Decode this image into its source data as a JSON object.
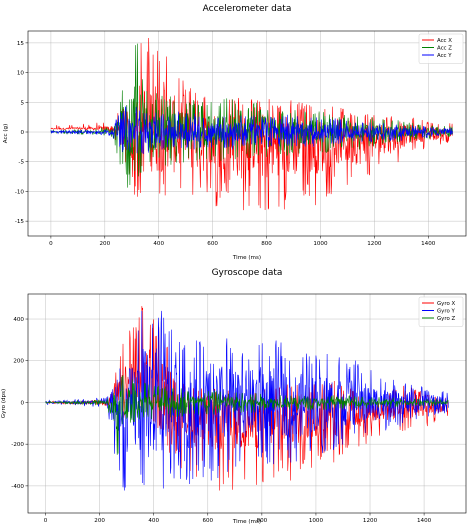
{
  "chart_data": [
    {
      "type": "line",
      "title": "Accelerometer data",
      "xlabel": "Time (ms)",
      "ylabel": "Acc (g)",
      "xlim": [
        -85,
        1540
      ],
      "ylim": [
        -17.5,
        17
      ],
      "xticks": [
        0,
        200,
        400,
        600,
        800,
        1000,
        1200,
        1400
      ],
      "yticks": [
        15,
        10,
        5,
        0,
        -5,
        -10,
        -15
      ],
      "grid": true,
      "legend_position": "top-right",
      "series": [
        {
          "name": "Acc X",
          "color": "#ff0000",
          "x": [
            0,
            50,
            100,
            150,
            200,
            230,
            260,
            290,
            320,
            340,
            360,
            380,
            400,
            430,
            460,
            500,
            540,
            580,
            620,
            660,
            700,
            750,
            800,
            850,
            900,
            950,
            1000,
            1050,
            1100,
            1150,
            1200,
            1250,
            1300,
            1350,
            1400,
            1450,
            1490
          ],
          "y_max": [
            1.2,
            1.2,
            1.5,
            1.5,
            1.7,
            2.0,
            4.5,
            4.0,
            16,
            16,
            16,
            16,
            16,
            16,
            11,
            8,
            7,
            6,
            6,
            7,
            6,
            5.5,
            6,
            5,
            5.5,
            5,
            4,
            4.5,
            4,
            3.5,
            3,
            3,
            2,
            2.5,
            1.8,
            1.5,
            1.5
          ],
          "y_min": [
            0.8,
            0.8,
            0.7,
            0.6,
            0.4,
            0.0,
            -4,
            -7,
            -14,
            -13,
            -13,
            -12,
            -13,
            -11,
            -13,
            -11,
            -13,
            -12,
            -13,
            -11,
            -15,
            -12,
            -15,
            -13,
            -14,
            -12,
            -13,
            -10,
            -10,
            -10,
            -8,
            -7,
            -5,
            -3,
            -3,
            -2,
            -2
          ]
        },
        {
          "name": "Acc Z",
          "color": "#008000",
          "x": [
            0,
            50,
            100,
            150,
            200,
            230,
            260,
            290,
            320,
            340,
            360,
            380,
            400,
            430,
            460,
            500,
            540,
            580,
            620,
            660,
            700,
            750,
            800,
            850,
            900,
            950,
            1000,
            1050,
            1100,
            1150,
            1200,
            1250,
            1300,
            1350,
            1400,
            1450,
            1490
          ],
          "y_max": [
            0.3,
            0.3,
            0.5,
            0.6,
            0.8,
            1.0,
            7,
            10,
            16,
            11,
            8,
            6,
            7,
            6,
            6,
            6,
            5.5,
            6,
            5,
            6,
            5,
            5,
            5,
            4.5,
            4,
            4,
            3.5,
            3.5,
            3,
            3,
            2.5,
            2,
            2,
            1.5,
            1.2,
            1.0,
            1.0
          ],
          "y_min": [
            -0.3,
            -0.3,
            -0.4,
            -0.5,
            -0.6,
            -1.0,
            -7,
            -10,
            -8,
            -7,
            -6,
            -6,
            -6,
            -6,
            -6,
            -5.5,
            -5,
            -5,
            -5,
            -5,
            -5,
            -4.5,
            -5,
            -4.5,
            -4,
            -4,
            -3.5,
            -3.5,
            -3,
            -3,
            -2.5,
            -2,
            -2,
            -1.5,
            -1.2,
            -1.0,
            -1.0
          ]
        },
        {
          "name": "Acc Y",
          "color": "#0000ff",
          "x": [
            0,
            50,
            100,
            150,
            200,
            230,
            260,
            290,
            320,
            340,
            360,
            380,
            400,
            430,
            460,
            500,
            540,
            580,
            620,
            660,
            700,
            750,
            800,
            850,
            900,
            950,
            1000,
            1050,
            1100,
            1150,
            1200,
            1250,
            1300,
            1350,
            1400,
            1450,
            1490
          ],
          "y_max": [
            0.3,
            0.3,
            0.3,
            0.4,
            0.5,
            0.8,
            4.5,
            4.5,
            4.5,
            4,
            4,
            3.5,
            4,
            3.5,
            3.5,
            3.5,
            3,
            3,
            3,
            3,
            3,
            3,
            3,
            3,
            3,
            2.5,
            2.5,
            2.5,
            2,
            2,
            2,
            1.5,
            1.5,
            1.2,
            1.0,
            0.8,
            0.7
          ],
          "y_min": [
            -0.3,
            -0.3,
            -0.3,
            -0.4,
            -0.5,
            -0.8,
            -4,
            -4,
            -4,
            -4,
            -3.5,
            -3.5,
            -3.5,
            -3.5,
            -3,
            -3,
            -3,
            -3,
            -3,
            -3,
            -3,
            -2.5,
            -3,
            -2.5,
            -2.5,
            -2.5,
            -2.5,
            -2,
            -2,
            -2,
            -1.5,
            -1.5,
            -1.5,
            -1.2,
            -1.0,
            -0.8,
            -0.7
          ]
        }
      ]
    },
    {
      "type": "line",
      "title": "Gyroscope data",
      "xlabel": "Time (ms)",
      "ylabel": "Gyro (dps)",
      "xlim": [
        -65,
        1555
      ],
      "ylim": [
        -530,
        520
      ],
      "xticks": [
        0,
        200,
        400,
        600,
        800,
        1000,
        1200,
        1400
      ],
      "yticks": [
        400,
        200,
        0,
        -200,
        -400
      ],
      "grid": true,
      "legend_position": "top-right",
      "series": [
        {
          "name": "Gyro X",
          "color": "#ff0000",
          "x": [
            0,
            50,
            100,
            150,
            200,
            230,
            260,
            290,
            320,
            340,
            360,
            380,
            400,
            430,
            460,
            500,
            540,
            580,
            620,
            660,
            700,
            750,
            800,
            850,
            900,
            950,
            1000,
            1050,
            1100,
            1150,
            1200,
            1250,
            1300,
            1350,
            1400,
            1450,
            1490
          ],
          "y_max": [
            5,
            5,
            8,
            10,
            15,
            20,
            150,
            300,
            400,
            400,
            480,
            470,
            450,
            420,
            300,
            100,
            80,
            80,
            70,
            70,
            60,
            50,
            60,
            70,
            100,
            100,
            90,
            100,
            110,
            60,
            50,
            40,
            80,
            80,
            50,
            30,
            30
          ],
          "y_min": [
            -5,
            -5,
            -8,
            -10,
            -15,
            -20,
            -60,
            -100,
            -80,
            -60,
            -60,
            -80,
            -100,
            -150,
            -250,
            -320,
            -350,
            -380,
            -420,
            -430,
            -430,
            -420,
            -400,
            -380,
            -380,
            -360,
            -330,
            -310,
            -260,
            -240,
            -200,
            -170,
            -150,
            -140,
            -120,
            -100,
            -80
          ]
        },
        {
          "name": "Gyro Y",
          "color": "#0000ff",
          "x": [
            0,
            50,
            100,
            150,
            200,
            230,
            260,
            290,
            320,
            340,
            360,
            380,
            400,
            430,
            460,
            500,
            540,
            580,
            620,
            660,
            700,
            750,
            800,
            850,
            900,
            950,
            1000,
            1050,
            1100,
            1150,
            1200,
            1250,
            1300,
            1350,
            1400,
            1450,
            1490
          ],
          "y_max": [
            10,
            10,
            15,
            20,
            20,
            30,
            100,
            250,
            330,
            430,
            480,
            490,
            480,
            470,
            380,
            300,
            300,
            300,
            350,
            330,
            280,
            280,
            330,
            300,
            270,
            250,
            240,
            250,
            230,
            200,
            160,
            130,
            100,
            90,
            80,
            60,
            50
          ],
          "y_min": [
            -10,
            -10,
            -15,
            -20,
            -20,
            -30,
            -350,
            -440,
            -450,
            -460,
            -490,
            -500,
            -470,
            -460,
            -440,
            -400,
            -400,
            -370,
            -390,
            -370,
            -310,
            -300,
            -320,
            -310,
            -290,
            -300,
            -250,
            -240,
            -220,
            -200,
            -170,
            -140,
            -120,
            -100,
            -80,
            -60,
            -50
          ]
        },
        {
          "name": "Gyro Z",
          "color": "#008000",
          "x": [
            0,
            50,
            100,
            150,
            200,
            230,
            260,
            290,
            320,
            340,
            360,
            380,
            400,
            430,
            460,
            500,
            540,
            580,
            620,
            660,
            700,
            750,
            800,
            850,
            900,
            950,
            1000,
            1050,
            1100,
            1150,
            1200,
            1250,
            1300,
            1350,
            1400,
            1450,
            1490
          ],
          "y_max": [
            5,
            5,
            8,
            10,
            15,
            20,
            80,
            170,
            130,
            110,
            100,
            90,
            90,
            80,
            80,
            70,
            60,
            60,
            60,
            55,
            50,
            50,
            50,
            45,
            45,
            40,
            40,
            35,
            35,
            30,
            30,
            25,
            25,
            20,
            20,
            15,
            15
          ],
          "y_min": [
            -5,
            -5,
            -8,
            -10,
            -15,
            -20,
            -270,
            -200,
            -100,
            -90,
            -90,
            -85,
            -80,
            -80,
            -75,
            -70,
            -60,
            -60,
            -60,
            -55,
            -50,
            -50,
            -50,
            -45,
            -45,
            -40,
            -40,
            -35,
            -35,
            -30,
            -30,
            -25,
            -25,
            -20,
            -20,
            -15,
            -15
          ]
        }
      ]
    }
  ]
}
